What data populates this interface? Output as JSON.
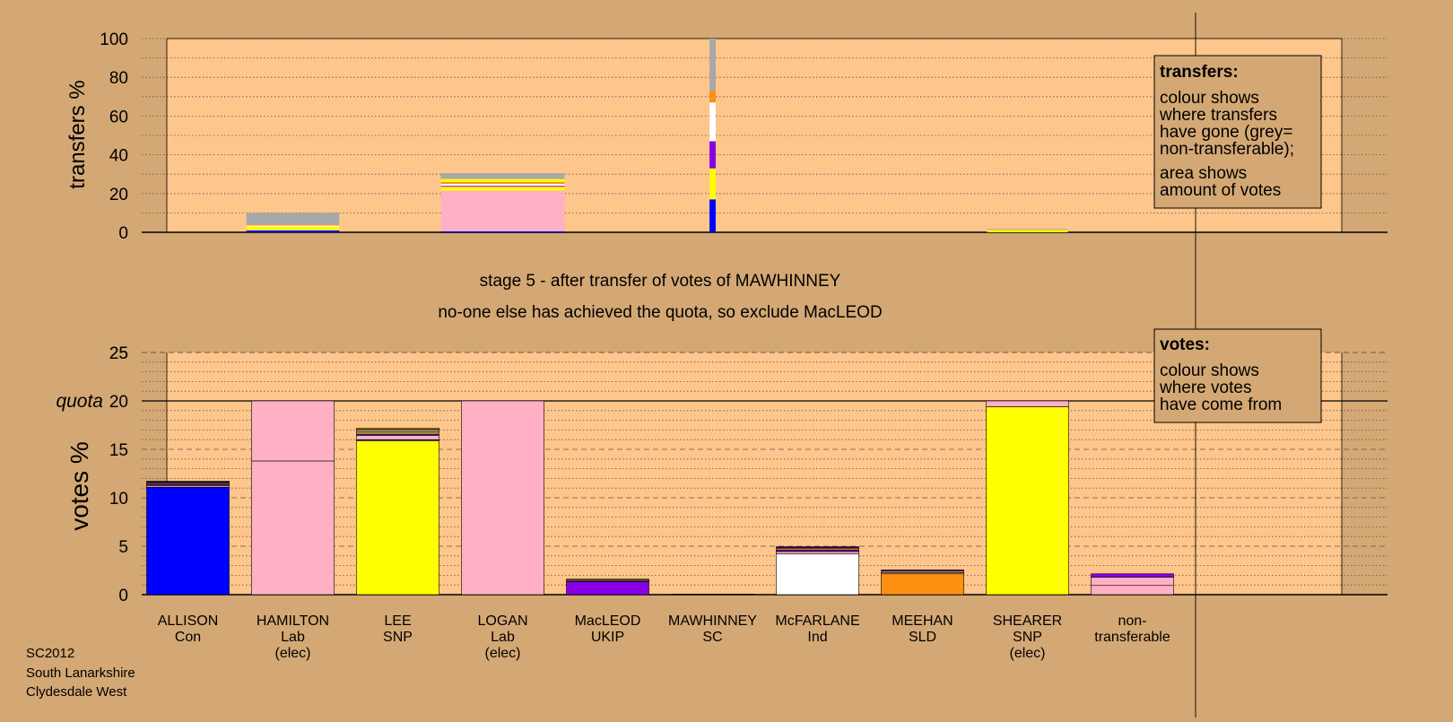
{
  "colors": {
    "background": "#D4A874",
    "plot_fill": "#FFC68C",
    "Con": "#0000FF",
    "Lab": "#FFB0C4",
    "SNP": "#FFFF00",
    "UKIP": "#8A00E6",
    "SC": "#B09040",
    "Ind": "#FFFFFF",
    "SLD": "#FF9010",
    "nontransferable": "#A8A8A8"
  },
  "titles": {
    "line1": "stage 5 - after transfer of votes of MAWHINNEY",
    "line2": "no-one else has achieved the quota, so exclude MacLEOD"
  },
  "footer": [
    "SC2012",
    "South Lanarkshire",
    "Clydesdale West"
  ],
  "legend_transfers": {
    "title": "transfers:",
    "lines": [
      "colour shows",
      "where transfers",
      "have gone (grey=",
      "non-transferable);",
      "area shows",
      "amount of votes"
    ]
  },
  "legend_votes": {
    "title": "votes:",
    "lines": [
      "colour shows",
      "where votes",
      "have come from"
    ]
  },
  "chart_data": [
    {
      "type": "bar",
      "ylabel": "transfers %",
      "ylim": [
        0,
        100
      ],
      "yticks": [
        0,
        20,
        40,
        60,
        80,
        100
      ],
      "grid": true,
      "legend_position": "top-right",
      "columns": [
        {
          "name": "ALLISON",
          "segments": []
        },
        {
          "name": "HAMILTON",
          "width_share": 0.75,
          "segments": [
            {
              "party": "Con",
              "value": 1
            },
            {
              "party": "SNP",
              "value": 2
            },
            {
              "party": "Ind",
              "value": 0.5
            },
            {
              "party": "SLD",
              "value": 0.5
            },
            {
              "party": "nontransferable",
              "value": 6
            }
          ]
        },
        {
          "name": "LEE",
          "segments": []
        },
        {
          "name": "LOGAN",
          "width_share": 1.0,
          "segments": [
            {
              "party": "Con",
              "value": 0.5
            },
            {
              "party": "Lab",
              "value": 21
            },
            {
              "party": "SNP",
              "value": 2
            },
            {
              "party": "UKIP",
              "value": 0.5
            },
            {
              "party": "Ind",
              "value": 1
            },
            {
              "party": "SLD",
              "value": 1
            },
            {
              "party": "SNP",
              "value": 1.5
            },
            {
              "party": "nontransferable",
              "value": 3
            }
          ]
        },
        {
          "name": "MacLEOD",
          "segments": []
        },
        {
          "name": "MAWHINNEY",
          "width_share": 0.05,
          "segments": [
            {
              "party": "Con",
              "value": 17
            },
            {
              "party": "SNP",
              "value": 16
            },
            {
              "party": "UKIP",
              "value": 14
            },
            {
              "party": "Ind",
              "value": 20
            },
            {
              "party": "SLD",
              "value": 6
            },
            {
              "party": "nontransferable",
              "value": 27
            }
          ]
        },
        {
          "name": "McFARLANE",
          "segments": []
        },
        {
          "name": "MEEHAN",
          "segments": []
        },
        {
          "name": "SHEARER",
          "width_share": 0.65,
          "segments": [
            {
              "party": "SNP",
              "value": 1.2
            },
            {
              "party": "nontransferable",
              "value": 0.5
            }
          ]
        },
        {
          "name": "non-transferable",
          "segments": []
        }
      ]
    },
    {
      "type": "bar",
      "ylabel": "votes %",
      "ylim": [
        0,
        25
      ],
      "yticks": [
        0,
        5,
        10,
        15,
        20,
        25
      ],
      "quota": {
        "label": "quota",
        "value": 20
      },
      "grid": true,
      "legend_position": "top-right",
      "columns": [
        {
          "name": "ALLISON",
          "party": "Con",
          "elec": "",
          "segments": [
            {
              "party": "Con",
              "value": 11.1
            },
            {
              "party": "Lab",
              "value": 0.15
            },
            {
              "party": "SNP",
              "value": 0.1
            },
            {
              "party": "UKIP",
              "value": 0.15
            },
            {
              "party": "SC",
              "value": 0.1
            },
            {
              "party": "Ind",
              "value": 0.05
            },
            {
              "party": "SLD",
              "value": 0.05
            }
          ]
        },
        {
          "name": "HAMILTON",
          "party": "Lab",
          "elec": "(elec)",
          "segments": [
            {
              "party": "Lab",
              "value": 13.8
            },
            {
              "party": "Lab",
              "value": 6.2
            }
          ]
        },
        {
          "name": "LEE",
          "party": "SNP",
          "elec": "",
          "segments": [
            {
              "party": "SNP",
              "value": 15.9
            },
            {
              "party": "Con",
              "value": 0.1
            },
            {
              "party": "Lab",
              "value": 0.45
            },
            {
              "party": "UKIP",
              "value": 0.1
            },
            {
              "party": "SC",
              "value": 0.25
            },
            {
              "party": "Ind",
              "value": 0.15
            },
            {
              "party": "SLD",
              "value": 0.15
            },
            {
              "party": "SNP",
              "value": 0.1
            }
          ]
        },
        {
          "name": "LOGAN",
          "party": "Lab",
          "elec": "(elec)",
          "segments": [
            {
              "party": "Lab",
              "value": 20
            }
          ]
        },
        {
          "name": "MacLEOD",
          "party": "UKIP",
          "elec": "",
          "segments": [
            {
              "party": "UKIP",
              "value": 1.35
            },
            {
              "party": "Lab",
              "value": 0.05
            },
            {
              "party": "SC",
              "value": 0.15
            },
            {
              "party": "SLD",
              "value": 0.05
            }
          ]
        },
        {
          "name": "MAWHINNEY",
          "party": "SC",
          "elec": "",
          "segments": [
            {
              "party": "SC",
              "value": 0.05
            }
          ]
        },
        {
          "name": "McFARLANE",
          "party": "Ind",
          "elec": "",
          "segments": [
            {
              "party": "Ind",
              "value": 4.2
            },
            {
              "party": "Lab",
              "value": 0.25
            },
            {
              "party": "UKIP",
              "value": 0.15
            },
            {
              "party": "SC",
              "value": 0.15
            },
            {
              "party": "SLD",
              "value": 0.1
            },
            {
              "party": "UKIP",
              "value": 0.1
            }
          ]
        },
        {
          "name": "MEEHAN",
          "party": "SLD",
          "elec": "",
          "segments": [
            {
              "party": "SLD",
              "value": 2.15
            },
            {
              "party": "Lab",
              "value": 0.1
            },
            {
              "party": "SC",
              "value": 0.2
            },
            {
              "party": "UKIP",
              "value": 0.1
            }
          ]
        },
        {
          "name": "SHEARER",
          "party": "SNP",
          "elec": "(elec)",
          "segments": [
            {
              "party": "SNP",
              "value": 19.4
            },
            {
              "party": "Lab",
              "value": 0.6
            }
          ]
        },
        {
          "name": "non-",
          "party": "transferable",
          "elec": "",
          "segments": [
            {
              "party": "Lab",
              "value": 0.95
            },
            {
              "party": "Lab",
              "value": 0.85
            },
            {
              "party": "UKIP",
              "value": 0.35
            }
          ]
        }
      ]
    }
  ]
}
